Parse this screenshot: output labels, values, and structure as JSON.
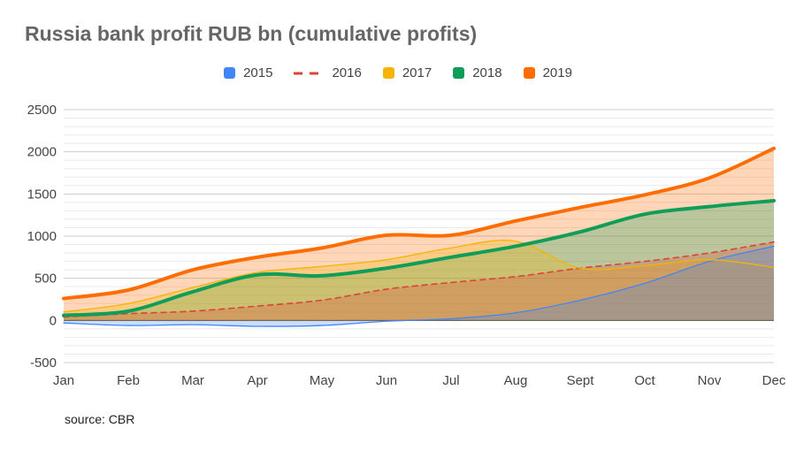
{
  "title": "Russia bank profit RUB bn (cumulative profits)",
  "source": "source: CBR",
  "chart_data": {
    "type": "area",
    "title": "Russia bank profit RUB bn (cumulative profits)",
    "xlabel": "",
    "ylabel": "",
    "categories": [
      "Jan",
      "Feb",
      "Mar",
      "Apr",
      "May",
      "Jun",
      "Jul",
      "Aug",
      "Sept",
      "Oct",
      "Nov",
      "Dec"
    ],
    "ylim": [
      -500,
      2500
    ],
    "yticks": [
      -500,
      0,
      500,
      1000,
      1500,
      2000,
      2500
    ],
    "grid": true,
    "legend_position": "top-center",
    "series": [
      {
        "name": "2015",
        "color": "#4285f4",
        "style": "solid-thin",
        "values": [
          -30,
          -60,
          -50,
          -70,
          -60,
          -10,
          20,
          90,
          240,
          440,
          700,
          880
        ]
      },
      {
        "name": "2016",
        "color": "#db4437",
        "style": "dashed",
        "values": [
          40,
          80,
          110,
          170,
          240,
          370,
          450,
          520,
          620,
          700,
          800,
          930
        ]
      },
      {
        "name": "2017",
        "color": "#f4b400",
        "style": "solid-thin",
        "values": [
          100,
          200,
          390,
          570,
          640,
          720,
          860,
          940,
          620,
          650,
          720,
          630
        ]
      },
      {
        "name": "2018",
        "color": "#0f9d58",
        "style": "solid-thick",
        "values": [
          60,
          110,
          340,
          540,
          530,
          620,
          750,
          880,
          1050,
          1260,
          1350,
          1420
        ]
      },
      {
        "name": "2019",
        "color": "#ff6d00",
        "style": "solid-thick",
        "values": [
          260,
          360,
          600,
          750,
          860,
          1010,
          1010,
          1180,
          1340,
          1490,
          1690,
          2040
        ]
      }
    ]
  }
}
